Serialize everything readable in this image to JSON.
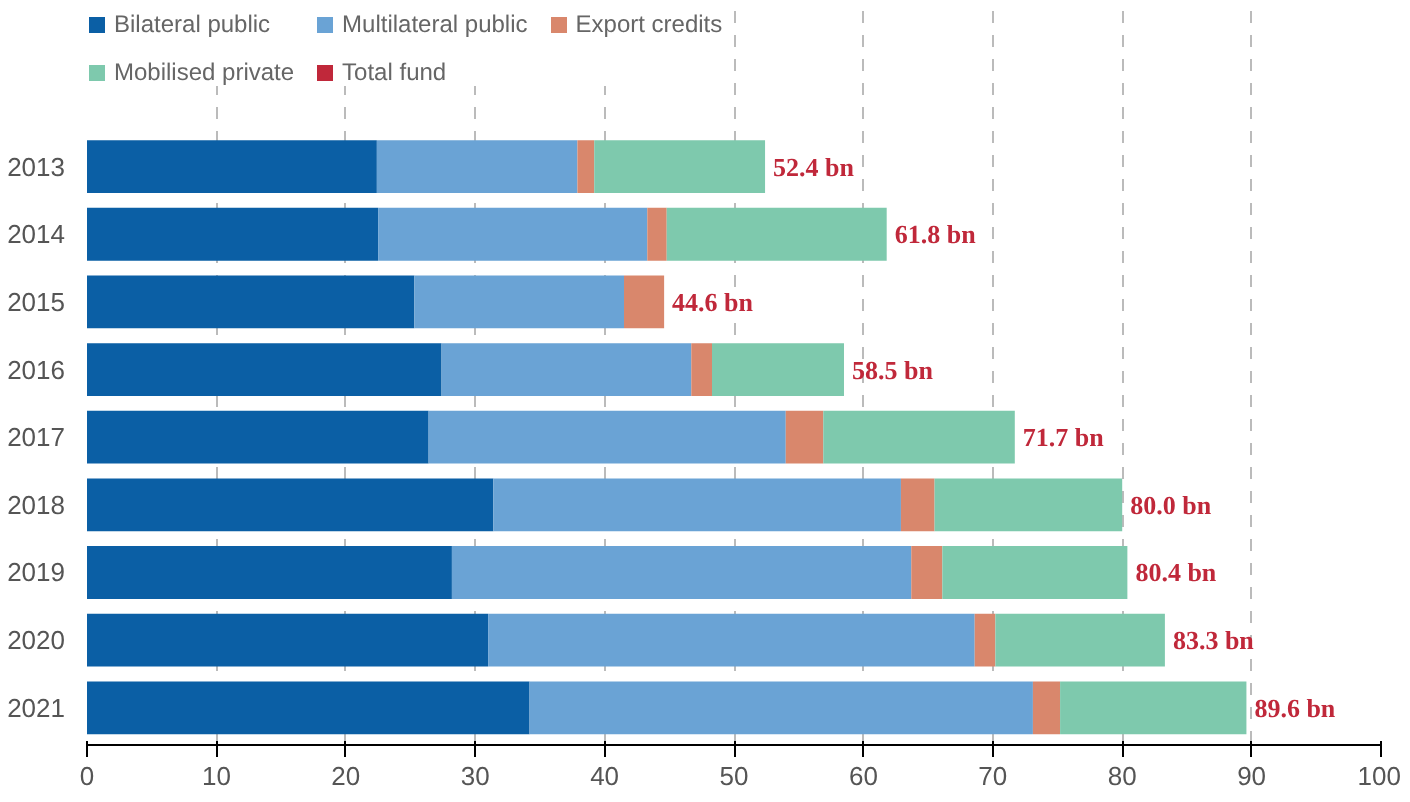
{
  "chart_data": {
    "type": "bar",
    "orientation": "horizontal",
    "stacked": true,
    "categories": [
      "2013",
      "2014",
      "2015",
      "2016",
      "2017",
      "2018",
      "2019",
      "2020",
      "2021"
    ],
    "series": [
      {
        "name": "Bilateral public",
        "color": "#0b5fa5",
        "values": [
          22.4,
          22.5,
          25.3,
          27.4,
          26.4,
          31.4,
          28.2,
          31.0,
          34.2
        ]
      },
      {
        "name": "Multilateral public",
        "color": "#6aa3d5",
        "values": [
          15.5,
          20.8,
          16.2,
          19.3,
          27.6,
          31.5,
          35.5,
          37.6,
          38.9
        ]
      },
      {
        "name": "Export credits",
        "color": "#d9876c",
        "values": [
          1.3,
          1.5,
          3.1,
          1.6,
          2.9,
          2.6,
          2.4,
          1.6,
          2.1
        ]
      },
      {
        "name": "Mobilised private",
        "color": "#7ec9ad",
        "values": [
          13.2,
          17.0,
          0,
          10.2,
          14.8,
          14.5,
          14.3,
          13.1,
          14.4
        ]
      },
      {
        "name": "Total fund",
        "color": "#c0283a",
        "values": [
          null,
          null,
          null,
          null,
          null,
          null,
          null,
          null,
          null
        ]
      }
    ],
    "totals": [
      "52.4 bn",
      "61.8 bn",
      "44.6 bn",
      "58.5 bn",
      "71.7 bn",
      "80.0 bn",
      "80.4 bn",
      "83.3 bn",
      "89.6 bn"
    ],
    "xlim": [
      0,
      100
    ],
    "xticks": [
      0,
      10,
      20,
      30,
      40,
      50,
      60,
      70,
      80,
      90,
      100
    ],
    "grid": "x",
    "legend": "top"
  }
}
